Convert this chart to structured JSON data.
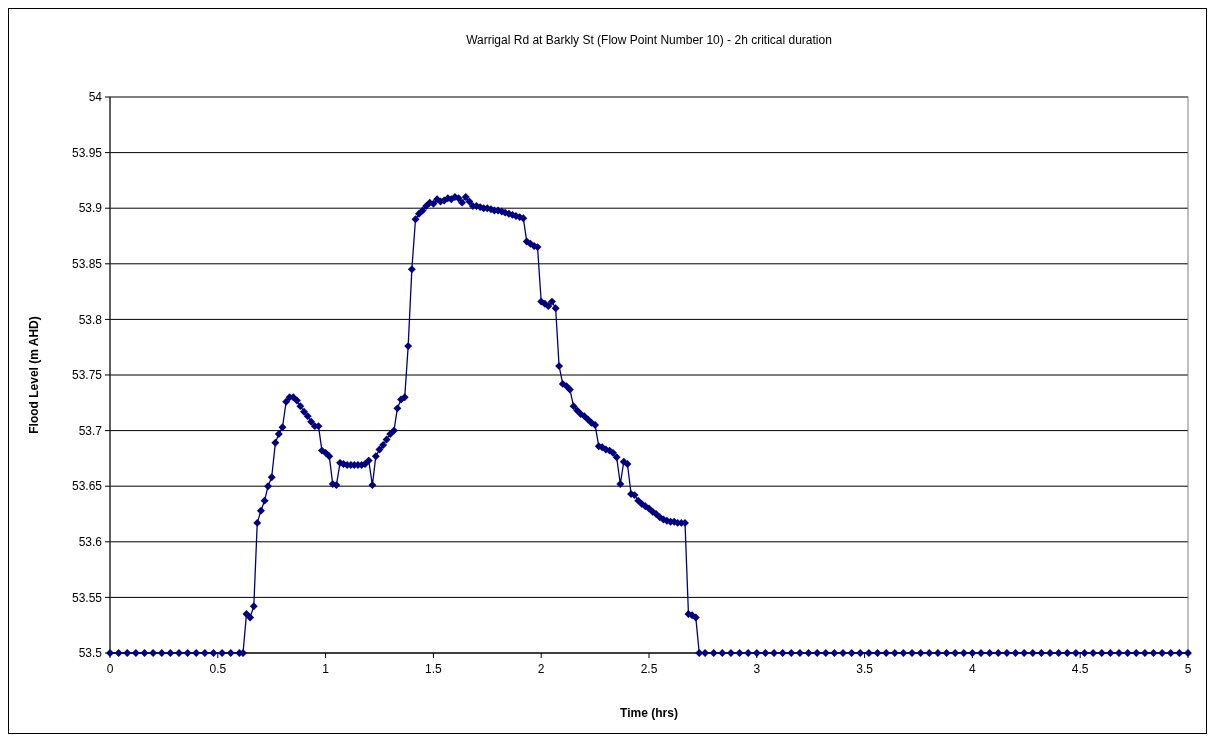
{
  "chart_data": {
    "type": "line",
    "title": "Warrigal Rd at Barkly St (Flow Point Number 10) - 2h critical duration",
    "xlabel": "Time (hrs)",
    "ylabel": "Flood Level (m AHD)",
    "xlim": [
      0,
      5
    ],
    "xticks": [
      0,
      0.5,
      1,
      1.5,
      2,
      2.5,
      3,
      3.5,
      4,
      4.5,
      5
    ],
    "ylim": [
      53.5,
      54
    ],
    "yticks": [
      53.5,
      53.55,
      53.6,
      53.65,
      53.7,
      53.75,
      53.8,
      53.85,
      53.9,
      53.95,
      54
    ],
    "grid": "y",
    "marker": "diamond",
    "line_style": "solid",
    "series": [
      {
        "color": "#000080",
        "x": [
          0,
          0.04,
          0.08,
          0.12,
          0.16,
          0.2,
          0.24,
          0.28,
          0.32,
          0.36,
          0.4,
          0.44,
          0.48,
          0.52,
          0.56,
          0.6,
          0.617,
          0.633,
          0.65,
          0.667,
          0.683,
          0.7,
          0.717,
          0.733,
          0.75,
          0.767,
          0.783,
          0.8,
          0.817,
          0.833,
          0.85,
          0.867,
          0.883,
          0.9,
          0.917,
          0.933,
          0.95,
          0.967,
          0.983,
          1.0,
          1.017,
          1.033,
          1.05,
          1.067,
          1.083,
          1.1,
          1.117,
          1.133,
          1.15,
          1.167,
          1.183,
          1.2,
          1.217,
          1.233,
          1.25,
          1.267,
          1.283,
          1.3,
          1.317,
          1.333,
          1.35,
          1.367,
          1.383,
          1.4,
          1.417,
          1.433,
          1.45,
          1.467,
          1.483,
          1.5,
          1.517,
          1.533,
          1.55,
          1.567,
          1.583,
          1.6,
          1.617,
          1.633,
          1.65,
          1.667,
          1.683,
          1.7,
          1.717,
          1.733,
          1.75,
          1.767,
          1.783,
          1.8,
          1.817,
          1.833,
          1.85,
          1.867,
          1.883,
          1.9,
          1.917,
          1.933,
          1.95,
          1.967,
          1.983,
          2.0,
          2.017,
          2.033,
          2.05,
          2.067,
          2.083,
          2.1,
          2.117,
          2.133,
          2.15,
          2.167,
          2.183,
          2.2,
          2.217,
          2.233,
          2.25,
          2.267,
          2.283,
          2.3,
          2.317,
          2.333,
          2.35,
          2.367,
          2.383,
          2.4,
          2.417,
          2.433,
          2.45,
          2.467,
          2.483,
          2.5,
          2.517,
          2.533,
          2.55,
          2.567,
          2.583,
          2.6,
          2.617,
          2.633,
          2.65,
          2.667,
          2.683,
          2.7,
          2.717,
          2.733,
          2.76,
          2.8,
          2.84,
          2.88,
          2.92,
          2.96,
          3.0,
          3.04,
          3.08,
          3.12,
          3.16,
          3.2,
          3.24,
          3.28,
          3.32,
          3.36,
          3.4,
          3.44,
          3.48,
          3.52,
          3.56,
          3.6,
          3.64,
          3.68,
          3.72,
          3.76,
          3.8,
          3.84,
          3.88,
          3.92,
          3.96,
          4.0,
          4.04,
          4.08,
          4.12,
          4.16,
          4.2,
          4.24,
          4.28,
          4.32,
          4.36,
          4.4,
          4.44,
          4.48,
          4.52,
          4.56,
          4.6,
          4.64,
          4.68,
          4.72,
          4.76,
          4.8,
          4.84,
          4.88,
          4.92,
          4.96,
          5.0
        ],
        "values": [
          53.5,
          53.5,
          53.5,
          53.5,
          53.5,
          53.5,
          53.5,
          53.5,
          53.5,
          53.5,
          53.5,
          53.5,
          53.5,
          53.5,
          53.5,
          53.5,
          53.5,
          53.535,
          53.532,
          53.542,
          53.617,
          53.628,
          53.637,
          53.65,
          53.658,
          53.689,
          53.697,
          53.703,
          53.726,
          53.73,
          53.73,
          53.727,
          53.722,
          53.717,
          53.713,
          53.708,
          53.704,
          53.704,
          53.682,
          53.68,
          53.677,
          53.652,
          53.651,
          53.671,
          53.67,
          53.669,
          53.669,
          53.669,
          53.669,
          53.669,
          53.67,
          53.673,
          53.651,
          53.677,
          53.683,
          53.687,
          53.692,
          53.697,
          53.7,
          53.72,
          53.728,
          53.73,
          53.776,
          53.845,
          53.89,
          53.895,
          53.898,
          53.902,
          53.905,
          53.904,
          53.908,
          53.906,
          53.907,
          53.909,
          53.908,
          53.91,
          53.909,
          53.905,
          53.91,
          53.906,
          53.902,
          53.902,
          53.901,
          53.9,
          53.9,
          53.899,
          53.898,
          53.898,
          53.897,
          53.896,
          53.895,
          53.894,
          53.893,
          53.892,
          53.891,
          53.87,
          53.868,
          53.866,
          53.865,
          53.816,
          53.814,
          53.812,
          53.816,
          53.81,
          53.758,
          53.742,
          53.74,
          53.737,
          53.722,
          53.718,
          53.715,
          53.713,
          53.71,
          53.707,
          53.705,
          53.686,
          53.685,
          53.683,
          53.682,
          53.68,
          53.676,
          53.652,
          53.672,
          53.67,
          53.643,
          53.642,
          53.637,
          53.634,
          53.632,
          53.63,
          53.627,
          53.625,
          53.622,
          53.62,
          53.619,
          53.618,
          53.618,
          53.617,
          53.617,
          53.617,
          53.535,
          53.534,
          53.532,
          53.5,
          53.5,
          53.5,
          53.5,
          53.5,
          53.5,
          53.5,
          53.5,
          53.5,
          53.5,
          53.5,
          53.5,
          53.5,
          53.5,
          53.5,
          53.5,
          53.5,
          53.5,
          53.5,
          53.5,
          53.5,
          53.5,
          53.5,
          53.5,
          53.5,
          53.5,
          53.5,
          53.5,
          53.5,
          53.5,
          53.5,
          53.5,
          53.5,
          53.5,
          53.5,
          53.5,
          53.5,
          53.5,
          53.5,
          53.5,
          53.5,
          53.5,
          53.5,
          53.5,
          53.5,
          53.5,
          53.5,
          53.5,
          53.5,
          53.5,
          53.5,
          53.5,
          53.5,
          53.5,
          53.5,
          53.5,
          53.5,
          53.5
        ]
      }
    ]
  }
}
